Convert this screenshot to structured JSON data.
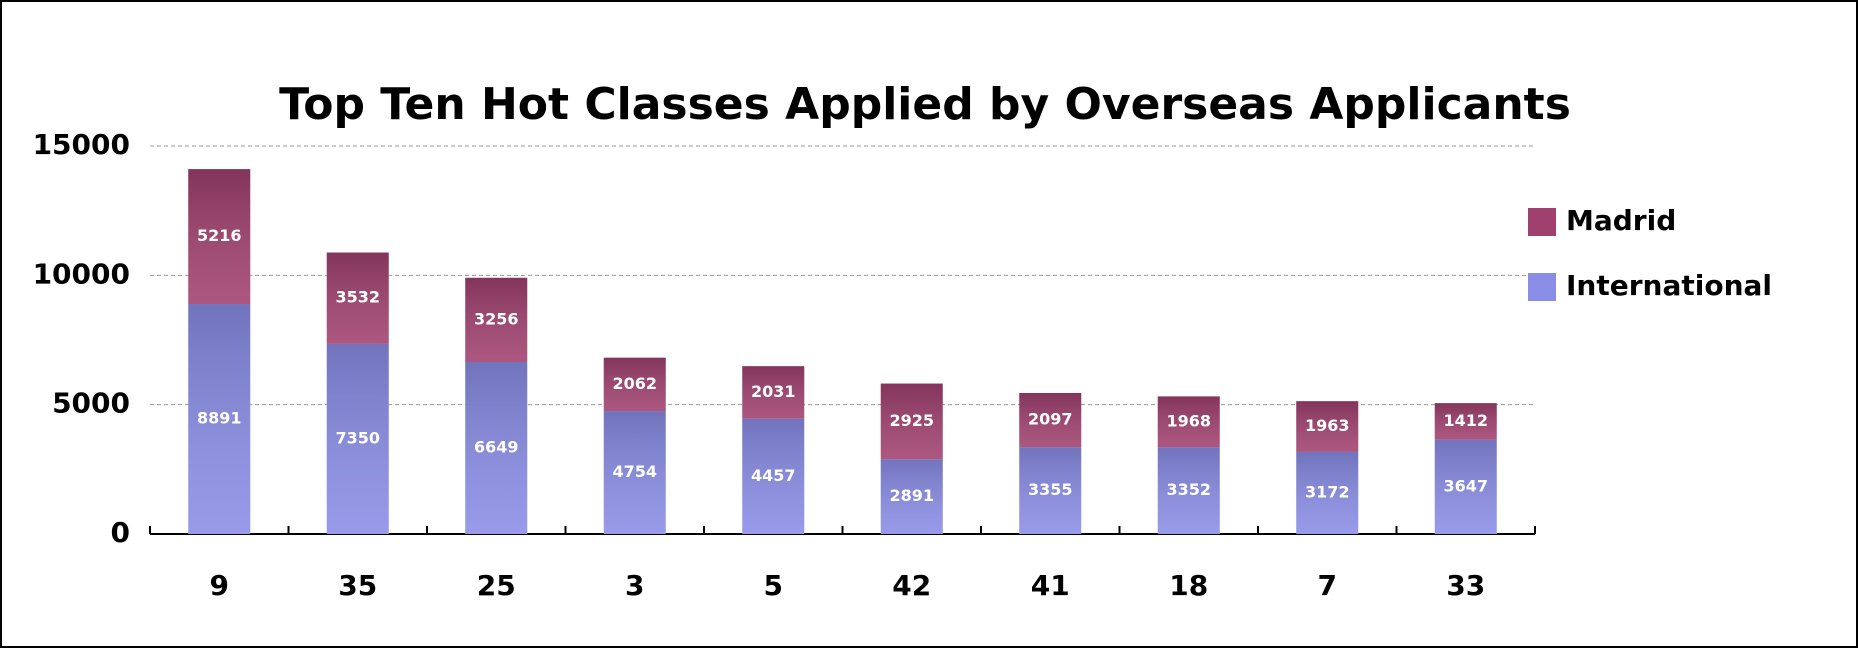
{
  "chart_data": {
    "type": "stacked_bar",
    "title": "Top Ten Hot Classes Applied by Overseas Applicants",
    "categories": [
      "9",
      "35",
      "25",
      "3",
      "5",
      "42",
      "41",
      "18",
      "7",
      "33"
    ],
    "series": [
      {
        "name": "International",
        "color": "#8a8de6",
        "values": [
          8891,
          7350,
          6649,
          4754,
          4457,
          2891,
          3355,
          3352,
          3172,
          3647
        ]
      },
      {
        "name": "Madrid",
        "color": "#a0406e",
        "values": [
          5216,
          3532,
          3256,
          2062,
          2031,
          2925,
          2097,
          1968,
          1963,
          1412
        ]
      }
    ],
    "ylim": [
      0,
      15000
    ],
    "yticks": [
      0,
      5000,
      10000,
      15000
    ],
    "grid": true,
    "legend": "right"
  }
}
